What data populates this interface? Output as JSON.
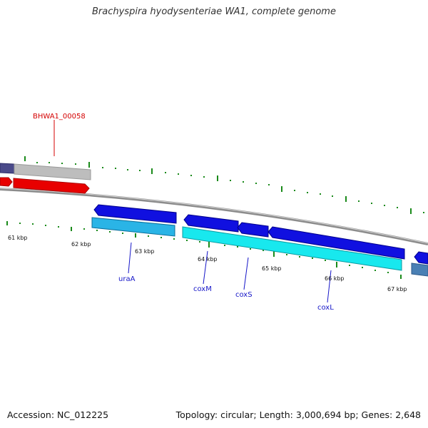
{
  "title": "Brachyspira hyodysenteriae WA1, complete genome",
  "accession": "Accession: NC_012225",
  "summary": "Topology: circular; Length: 3,000,694 bp; Genes: 2,648",
  "colors": {
    "backbone": "#8c8c8c",
    "tick": "#1a8a1a",
    "gene_forward": "#e80000",
    "gene_forward_gray": "#bdbdbd",
    "gene_forward_navy": "#4a4a8a",
    "gene_reverse_blue": "#1010e0",
    "gene_reverse_cyan": "#18e8ee",
    "gene_reverse_lightblue": "#2ab4e6",
    "gene_reverse_steel": "#4a80b4",
    "label_red": "#d40000",
    "label_blue": "#1515c8"
  },
  "kbp_labels": [
    "61 kbp",
    "62 kbp",
    "63 kbp",
    "64 kbp",
    "65 kbp",
    "66 kbp",
    "67 kbp"
  ],
  "gene_labels": [
    {
      "id": "bhwa1",
      "text": "BHWA1_00058",
      "color": "red"
    },
    {
      "id": "uraA",
      "text": "uraA",
      "color": "blue"
    },
    {
      "id": "coxM",
      "text": "coxM",
      "color": "blue"
    },
    {
      "id": "coxS",
      "text": "coxS",
      "color": "blue"
    },
    {
      "id": "coxL",
      "text": "coxL",
      "color": "blue"
    }
  ]
}
